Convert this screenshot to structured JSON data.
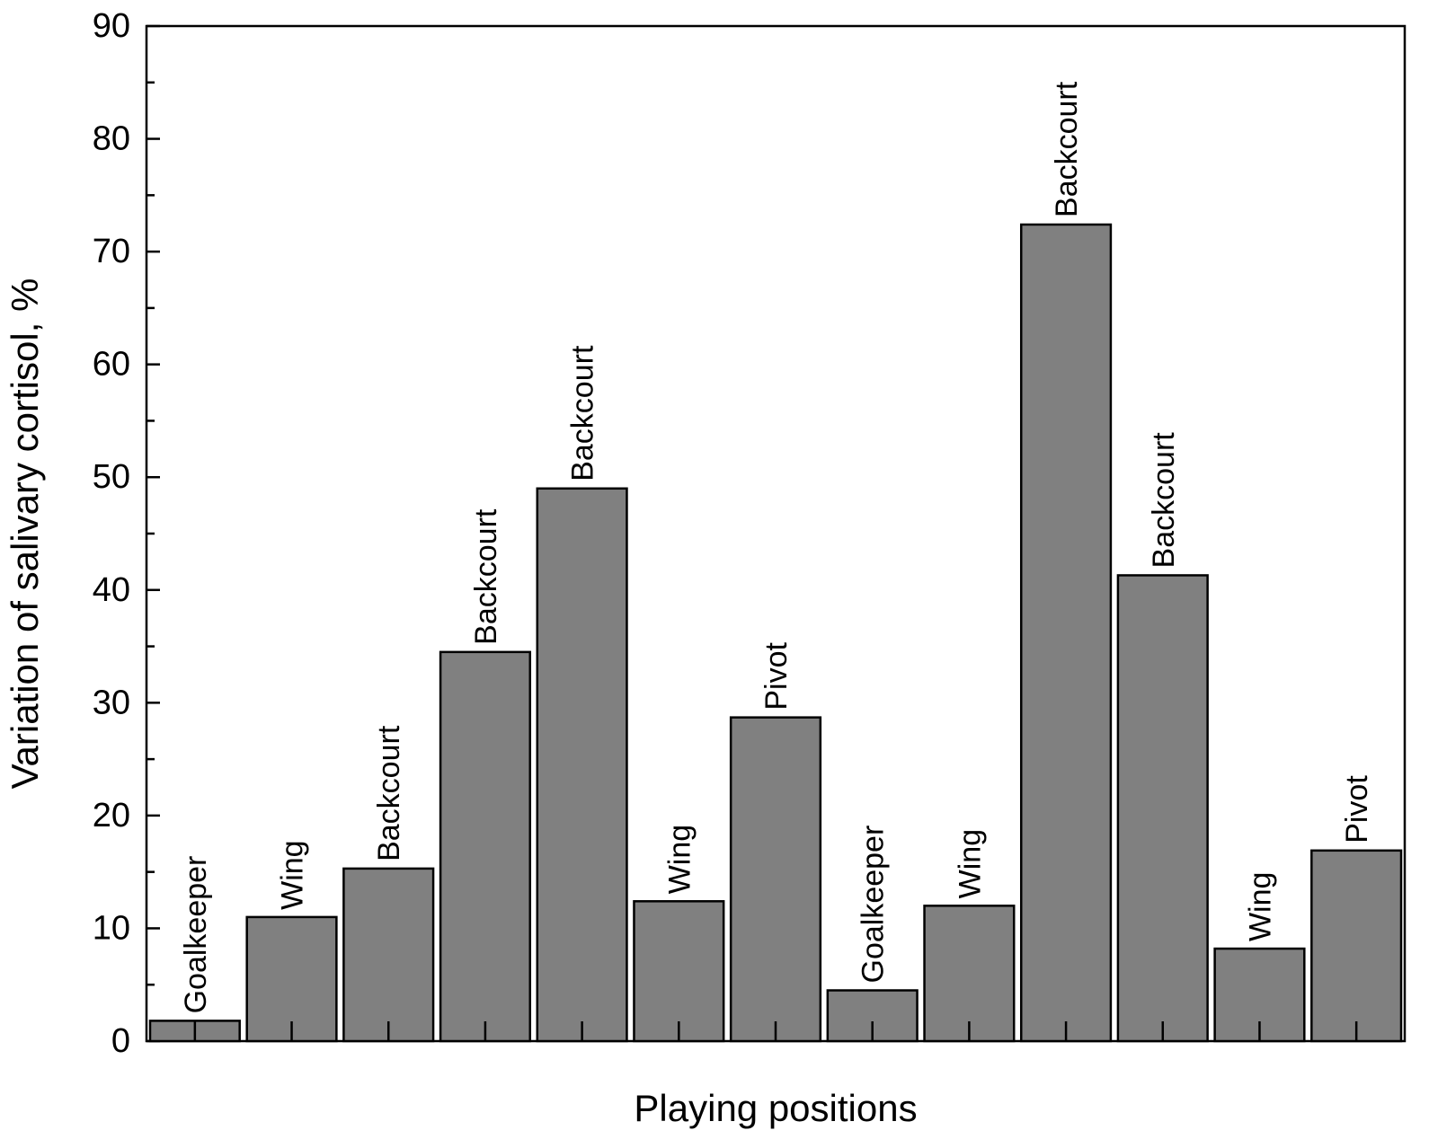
{
  "chart_data": {
    "type": "bar",
    "xlabel": "Playing positions",
    "ylabel": "Variation of salivary cortisol, %",
    "ylim": [
      0,
      90
    ],
    "y_major_ticks": [
      0,
      10,
      20,
      30,
      40,
      50,
      60,
      70,
      80,
      90
    ],
    "y_minor_step": 5,
    "grid": false,
    "bar_color": "#808080",
    "bar_outline_color": "#000000",
    "categories": [
      "Goalkeeper",
      "Wing",
      "Backcourt",
      "Backcourt",
      "Backcourt",
      "Wing",
      "Pivot",
      "Goalkeeper",
      "Wing",
      "Backcourt",
      "Backcourt",
      "Wing",
      "Pivot"
    ],
    "values": [
      1.8,
      11.0,
      15.3,
      34.5,
      49.0,
      12.4,
      28.7,
      4.5,
      12.0,
      72.4,
      41.3,
      8.2,
      16.9
    ]
  }
}
